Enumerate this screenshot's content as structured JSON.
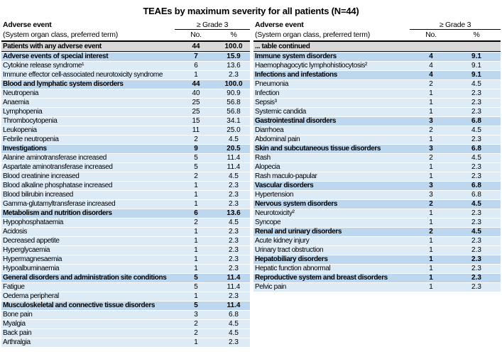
{
  "title": "TEAEs by maximum severity for all patients (N=44)",
  "columns": {
    "event_header_line1": "Adverse event",
    "event_header_line2": "(System organ class, preferred term)",
    "grade_header": "≥ Grade 3",
    "no_header": "No.",
    "pct_header": "%"
  },
  "colors": {
    "total_row_bg": "#D9D9D9",
    "soc_row_bg": "#BDD7EE",
    "term_row_bg": "#DDEBF7",
    "border": "#000000"
  },
  "left_table": {
    "rows": [
      {
        "label": "Patients with any adverse event",
        "no": "44",
        "pct": "100.0",
        "type": "total"
      },
      {
        "label": "Adverse events of special interest",
        "no": "7",
        "pct": "15.9",
        "type": "soc"
      },
      {
        "label": "Cytokine release syndrome¹",
        "no": "6",
        "pct": "13.6",
        "type": "term"
      },
      {
        "label": "Immune effector cell-associated neurotoxicity syndrome",
        "no": "1",
        "pct": "2.3",
        "type": "term"
      },
      {
        "label": "Blood and lymphatic system disorders",
        "no": "44",
        "pct": "100.0",
        "type": "soc"
      },
      {
        "label": "Neutropenia",
        "no": "40",
        "pct": "90.9",
        "type": "term"
      },
      {
        "label": "Anaemia",
        "no": "25",
        "pct": "56.8",
        "type": "term"
      },
      {
        "label": "Lymphopenia",
        "no": "25",
        "pct": "56.8",
        "type": "term"
      },
      {
        "label": "Thrombocytopenia",
        "no": "15",
        "pct": "34.1",
        "type": "term"
      },
      {
        "label": "Leukopenia",
        "no": "11",
        "pct": "25.0",
        "type": "term"
      },
      {
        "label": "Febrile neutropenia",
        "no": "2",
        "pct": "4.5",
        "type": "term"
      },
      {
        "label": "Investigations",
        "no": "9",
        "pct": "20.5",
        "type": "soc"
      },
      {
        "label": "Alanine aminotransferase increased",
        "no": "5",
        "pct": "11.4",
        "type": "term"
      },
      {
        "label": "Aspartate aminotransferase increased",
        "no": "5",
        "pct": "11.4",
        "type": "term"
      },
      {
        "label": "Blood creatinine increased",
        "no": "2",
        "pct": "4.5",
        "type": "term"
      },
      {
        "label": "Blood alkaline phosphatase increased",
        "no": "1",
        "pct": "2.3",
        "type": "term"
      },
      {
        "label": "Blood bilirubin increased",
        "no": "1",
        "pct": "2.3",
        "type": "term"
      },
      {
        "label": "Gamma-glutamyltransferase increased",
        "no": "1",
        "pct": "2.3",
        "type": "term"
      },
      {
        "label": "Metabolism and nutrition disorders",
        "no": "6",
        "pct": "13.6",
        "type": "soc"
      },
      {
        "label": "Hypophosphataemia",
        "no": "2",
        "pct": "4.5",
        "type": "term"
      },
      {
        "label": "Acidosis",
        "no": "1",
        "pct": "2.3",
        "type": "term"
      },
      {
        "label": "Decreased appetite",
        "no": "1",
        "pct": "2.3",
        "type": "term"
      },
      {
        "label": "Hyperglycaemia",
        "no": "1",
        "pct": "2.3",
        "type": "term"
      },
      {
        "label": "Hypermagnesaemia",
        "no": "1",
        "pct": "2.3",
        "type": "term"
      },
      {
        "label": "Hypoalbuminaemia",
        "no": "1",
        "pct": "2.3",
        "type": "term"
      },
      {
        "label": "General disorders and administration site conditions",
        "no": "5",
        "pct": "11.4",
        "type": "soc"
      },
      {
        "label": "Fatigue",
        "no": "5",
        "pct": "11.4",
        "type": "term"
      },
      {
        "label": "Oedema peripheral",
        "no": "1",
        "pct": "2.3",
        "type": "term"
      },
      {
        "label": "Musculoskeletal and connective tissue disorders",
        "no": "5",
        "pct": "11.4",
        "type": "soc"
      },
      {
        "label": "Bone pain",
        "no": "3",
        "pct": "6.8",
        "type": "term"
      },
      {
        "label": "Myalgia",
        "no": "2",
        "pct": "4.5",
        "type": "term"
      },
      {
        "label": "Back pain",
        "no": "2",
        "pct": "4.5",
        "type": "term"
      },
      {
        "label": "Arthralgia",
        "no": "1",
        "pct": "2.3",
        "type": "term"
      }
    ]
  },
  "right_table": {
    "rows": [
      {
        "label": "... table continued",
        "no": "",
        "pct": "",
        "type": "total"
      },
      {
        "label": "Immune system disorders",
        "no": "4",
        "pct": "9.1",
        "type": "soc"
      },
      {
        "label": "Haemophagocytic lymphohistiocytosis²",
        "no": "4",
        "pct": "9.1",
        "type": "term"
      },
      {
        "label": "Infections and infestations",
        "no": "4",
        "pct": "9.1",
        "type": "soc"
      },
      {
        "label": "Pneumonia",
        "no": "2",
        "pct": "4.5",
        "type": "term"
      },
      {
        "label": "Infection",
        "no": "1",
        "pct": "2.3",
        "type": "term"
      },
      {
        "label": "Sepsis³",
        "no": "1",
        "pct": "2.3",
        "type": "term"
      },
      {
        "label": "Systemic candida",
        "no": "1",
        "pct": "2.3",
        "type": "term"
      },
      {
        "label": "Gastrointestinal disorders",
        "no": "3",
        "pct": "6.8",
        "type": "soc"
      },
      {
        "label": "Diarrhoea",
        "no": "2",
        "pct": "4.5",
        "type": "term"
      },
      {
        "label": "Abdominal pain",
        "no": "1",
        "pct": "2.3",
        "type": "term"
      },
      {
        "label": "Skin and subcutaneous tissue disorders",
        "no": "3",
        "pct": "6.8",
        "type": "soc"
      },
      {
        "label": "Rash",
        "no": "2",
        "pct": "4.5",
        "type": "term"
      },
      {
        "label": "Alopecia",
        "no": "1",
        "pct": "2.3",
        "type": "term"
      },
      {
        "label": "Rash maculo-papular",
        "no": "1",
        "pct": "2.3",
        "type": "term"
      },
      {
        "label": "Vascular disorders",
        "no": "3",
        "pct": "6.8",
        "type": "soc"
      },
      {
        "label": "Hypertension",
        "no": "3",
        "pct": "6.8",
        "type": "term"
      },
      {
        "label": "Nervous system disorders",
        "no": "2",
        "pct": "4.5",
        "type": "soc"
      },
      {
        "label": "Neurotoxicity²",
        "no": "1",
        "pct": "2.3",
        "type": "term"
      },
      {
        "label": "Syncope",
        "no": "1",
        "pct": "2.3",
        "type": "term"
      },
      {
        "label": "Renal and urinary disorders",
        "no": "2",
        "pct": "4.5",
        "type": "soc"
      },
      {
        "label": "Acute kidney injury",
        "no": "1",
        "pct": "2.3",
        "type": "term"
      },
      {
        "label": "Urinary tract obstruction",
        "no": "1",
        "pct": "2.3",
        "type": "term"
      },
      {
        "label": "Hepatobiliary disorders",
        "no": "1",
        "pct": "2.3",
        "type": "soc"
      },
      {
        "label": "Hepatic function abnormal",
        "no": "1",
        "pct": "2.3",
        "type": "term"
      },
      {
        "label": "Reproductive system and breast disorders",
        "no": "1",
        "pct": "2.3",
        "type": "soc"
      },
      {
        "label": "Pelvic pain",
        "no": "1",
        "pct": "2.3",
        "type": "term"
      }
    ]
  }
}
